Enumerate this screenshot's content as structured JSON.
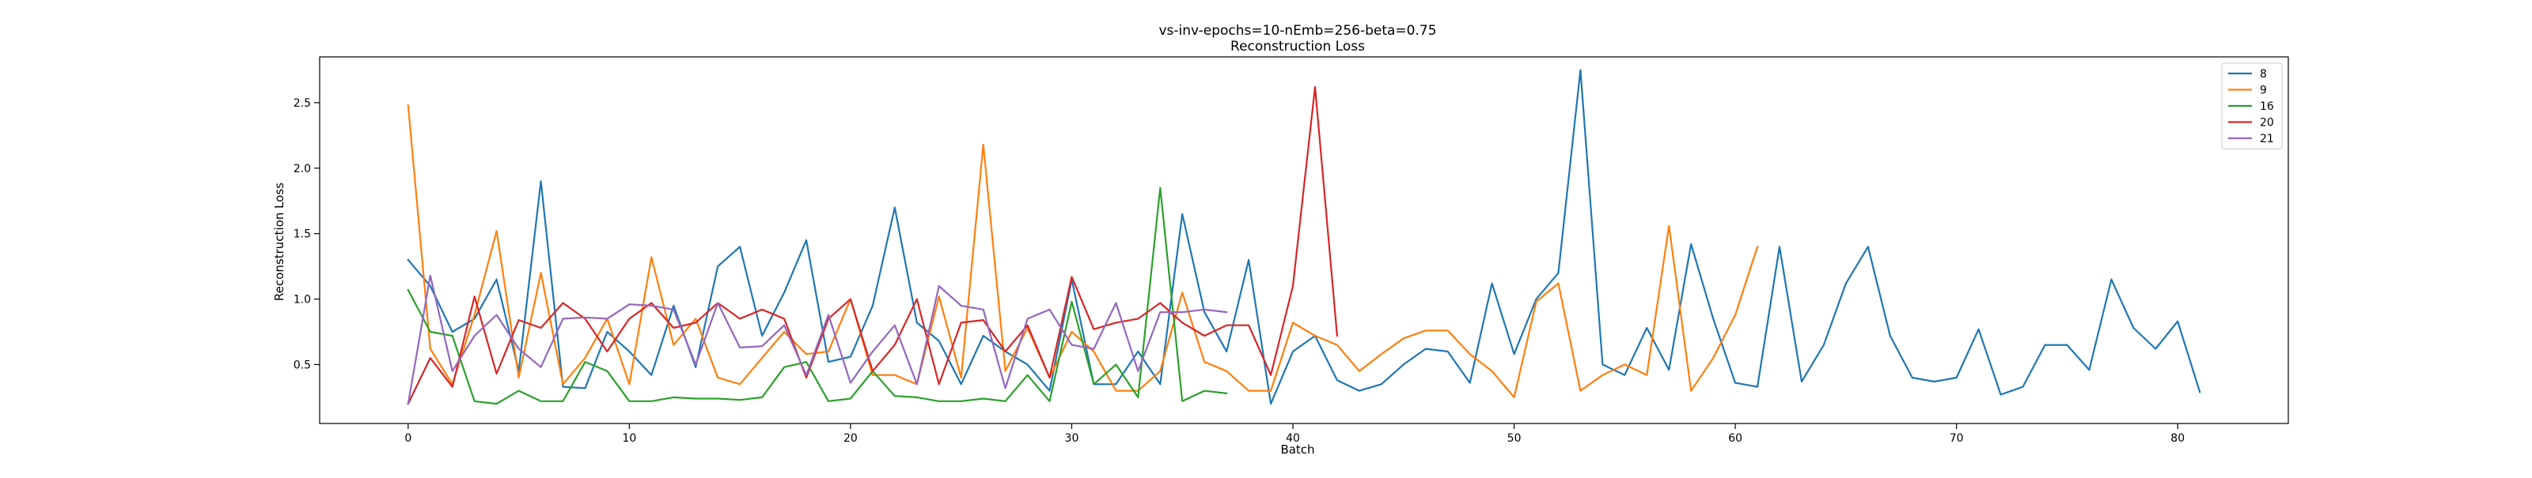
{
  "chart_data": {
    "type": "line",
    "title": "vs-inv-epochs=10-nEmb=256-beta=0.75",
    "subtitle": "Reconstruction Loss",
    "xlabel": "Batch",
    "ylabel": "Reconstruction Loss",
    "xlim": [
      -4,
      85
    ],
    "ylim": [
      0.05,
      2.85
    ],
    "xticks": [
      0,
      10,
      20,
      30,
      40,
      50,
      60,
      70,
      80
    ],
    "yticks": [
      0.5,
      1.0,
      1.5,
      2.0,
      2.5
    ],
    "ytick_labels": [
      "0.5",
      "1.0",
      "1.5",
      "2.0",
      "2.5"
    ],
    "grid": false,
    "legend_position": "top-right",
    "series": [
      {
        "name": "8",
        "color": "#1f77b4",
        "values": [
          1.3,
          1.1,
          0.75,
          0.85,
          1.15,
          0.45,
          1.9,
          0.33,
          0.32,
          0.75,
          0.6,
          0.42,
          0.95,
          0.48,
          1.25,
          1.4,
          0.72,
          1.05,
          1.45,
          0.52,
          0.56,
          0.95,
          1.7,
          0.82,
          0.68,
          0.35,
          0.72,
          0.6,
          0.5,
          0.3,
          1.15,
          0.35,
          0.35,
          0.6,
          0.35,
          1.65,
          0.9,
          0.6,
          1.3,
          0.2,
          0.6,
          0.72,
          0.38,
          0.3,
          0.35,
          0.5,
          0.62,
          0.6,
          0.36,
          1.12,
          0.58,
          1.0,
          1.2,
          2.75,
          0.5,
          0.42,
          0.78,
          0.46,
          1.42,
          0.85,
          0.36,
          0.33,
          1.4,
          0.37,
          0.65,
          1.12,
          1.4,
          0.72,
          0.4,
          0.37,
          0.4,
          0.77,
          0.27,
          0.33,
          0.65,
          0.65,
          0.46,
          1.15,
          0.78,
          0.62,
          0.83,
          0.29
        ]
      },
      {
        "name": "9",
        "color": "#ff7f0e",
        "values": [
          2.48,
          0.62,
          0.35,
          0.88,
          1.52,
          0.4,
          1.2,
          0.35,
          0.55,
          0.85,
          0.35,
          1.32,
          0.65,
          0.85,
          0.4,
          0.35,
          0.55,
          0.75,
          0.58,
          0.6,
          1.0,
          0.42,
          0.42,
          0.35,
          1.02,
          0.4,
          2.18,
          0.45,
          0.78,
          0.4,
          0.75,
          0.6,
          0.3,
          0.3,
          0.45,
          1.05,
          0.52,
          0.45,
          0.3,
          0.3,
          0.82,
          0.72,
          0.65,
          0.45,
          0.58,
          0.7,
          0.76,
          0.76,
          0.58,
          0.45,
          0.25,
          0.98,
          1.12,
          0.3,
          0.42,
          0.5,
          0.42,
          1.56,
          0.3,
          0.55,
          0.88,
          1.4
        ]
      },
      {
        "name": "16",
        "color": "#2ca02c",
        "values": [
          1.07,
          0.75,
          0.72,
          0.22,
          0.2,
          0.3,
          0.22,
          0.22,
          0.52,
          0.45,
          0.22,
          0.22,
          0.25,
          0.24,
          0.24,
          0.23,
          0.25,
          0.48,
          0.52,
          0.22,
          0.24,
          0.45,
          0.26,
          0.25,
          0.22,
          0.22,
          0.24,
          0.22,
          0.42,
          0.22,
          0.98,
          0.35,
          0.5,
          0.25,
          1.85,
          0.22,
          0.3,
          0.28
        ]
      },
      {
        "name": "20",
        "color": "#d62728",
        "values": [
          0.2,
          0.55,
          0.33,
          1.02,
          0.43,
          0.84,
          0.78,
          0.97,
          0.85,
          0.6,
          0.85,
          0.97,
          0.78,
          0.82,
          0.97,
          0.85,
          0.92,
          0.85,
          0.4,
          0.85,
          1.0,
          0.45,
          0.65,
          1.0,
          0.35,
          0.82,
          0.84,
          0.6,
          0.8,
          0.4,
          1.17,
          0.77,
          0.82,
          0.85,
          0.97,
          0.82,
          0.72,
          0.8,
          0.8,
          0.42,
          1.1,
          2.62,
          0.72
        ]
      },
      {
        "name": "21",
        "color": "#9467bd",
        "values": [
          0.2,
          1.18,
          0.45,
          0.72,
          0.88,
          0.62,
          0.48,
          0.85,
          0.86,
          0.85,
          0.96,
          0.95,
          0.92,
          0.5,
          0.97,
          0.63,
          0.64,
          0.8,
          0.42,
          0.88,
          0.36,
          0.6,
          0.8,
          0.35,
          1.1,
          0.95,
          0.92,
          0.32,
          0.85,
          0.92,
          0.65,
          0.62,
          0.97,
          0.45,
          0.9,
          0.9,
          0.92,
          0.9
        ]
      }
    ]
  }
}
